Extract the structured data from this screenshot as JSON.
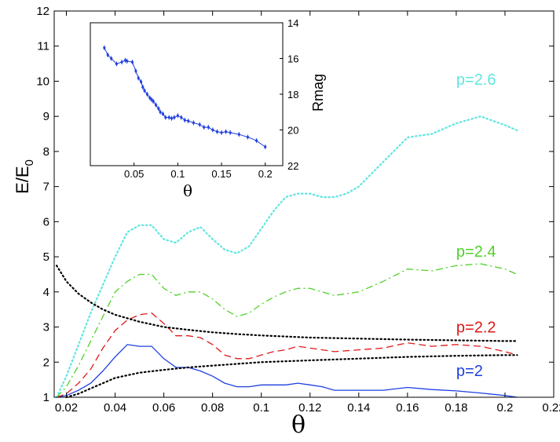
{
  "chart_data": {
    "type": "line",
    "xlabel": "θ",
    "ylabel": "E/E",
    "ylabel_sub": "0",
    "xlim": [
      0.015,
      0.22
    ],
    "ylim": [
      1,
      12
    ],
    "xticks": [
      0.02,
      0.04,
      0.06,
      0.08,
      0.1,
      0.12,
      0.14,
      0.16,
      0.18,
      0.2,
      0.22
    ],
    "xtick_labels": [
      "0.02",
      "0.04",
      "0.06",
      "0.08",
      "0.1",
      "0.12",
      "0.14",
      "0.16",
      "0.18",
      "0.2",
      "0.22"
    ],
    "yticks": [
      1,
      2,
      3,
      4,
      5,
      6,
      7,
      8,
      9,
      10,
      11,
      12
    ],
    "ytick_labels": [
      "1",
      "2",
      "3",
      "4",
      "5",
      "6",
      "7",
      "8",
      "9",
      "10",
      "11",
      "12"
    ],
    "series": [
      {
        "name": "p=2",
        "label": "p=2",
        "color": "#1f3fe0",
        "style": "solid",
        "label_at": [
          0.18,
          1.6
        ],
        "x": [
          0.016,
          0.02,
          0.025,
          0.03,
          0.035,
          0.04,
          0.045,
          0.05,
          0.055,
          0.06,
          0.065,
          0.07,
          0.075,
          0.08,
          0.085,
          0.09,
          0.095,
          0.1,
          0.105,
          0.11,
          0.115,
          0.12,
          0.125,
          0.13,
          0.135,
          0.14,
          0.15,
          0.16,
          0.17,
          0.18,
          0.19,
          0.2,
          0.205
        ],
        "y": [
          1.0,
          1.05,
          1.2,
          1.4,
          1.75,
          2.15,
          2.5,
          2.45,
          2.45,
          2.1,
          1.85,
          1.85,
          1.75,
          1.6,
          1.4,
          1.3,
          1.3,
          1.35,
          1.35,
          1.35,
          1.4,
          1.35,
          1.3,
          1.2,
          1.2,
          1.2,
          1.2,
          1.28,
          1.22,
          1.18,
          1.12,
          1.05,
          1.0
        ]
      },
      {
        "name": "p=2.2",
        "label": "p=2.2",
        "color": "#e01818",
        "style": "dashed",
        "label_at": [
          0.18,
          2.85
        ],
        "x": [
          0.016,
          0.02,
          0.025,
          0.03,
          0.035,
          0.04,
          0.045,
          0.05,
          0.055,
          0.06,
          0.065,
          0.07,
          0.075,
          0.08,
          0.085,
          0.09,
          0.095,
          0.1,
          0.105,
          0.11,
          0.115,
          0.12,
          0.125,
          0.13,
          0.14,
          0.15,
          0.16,
          0.17,
          0.18,
          0.19,
          0.2,
          0.205
        ],
        "y": [
          1.0,
          1.1,
          1.4,
          1.8,
          2.4,
          2.9,
          3.2,
          3.35,
          3.4,
          3.1,
          2.75,
          2.75,
          2.7,
          2.5,
          2.2,
          2.1,
          2.1,
          2.2,
          2.3,
          2.35,
          2.45,
          2.4,
          2.35,
          2.3,
          2.35,
          2.4,
          2.55,
          2.45,
          2.5,
          2.45,
          2.3,
          2.2
        ]
      },
      {
        "name": "p=2.4",
        "label": "p=2.4",
        "color": "#4fd12a",
        "style": "dashdot",
        "label_at": [
          0.18,
          5.0
        ],
        "x": [
          0.016,
          0.02,
          0.025,
          0.03,
          0.035,
          0.04,
          0.045,
          0.05,
          0.055,
          0.06,
          0.065,
          0.07,
          0.075,
          0.08,
          0.085,
          0.09,
          0.095,
          0.1,
          0.105,
          0.11,
          0.115,
          0.12,
          0.125,
          0.13,
          0.14,
          0.15,
          0.16,
          0.17,
          0.18,
          0.19,
          0.2,
          0.205
        ],
        "y": [
          1.0,
          1.3,
          1.9,
          2.6,
          3.3,
          4.0,
          4.3,
          4.5,
          4.5,
          4.1,
          3.9,
          4.0,
          4.0,
          3.8,
          3.5,
          3.3,
          3.4,
          3.65,
          3.85,
          4.0,
          4.1,
          4.1,
          4.0,
          3.9,
          4.0,
          4.3,
          4.65,
          4.6,
          4.75,
          4.8,
          4.65,
          4.5
        ]
      },
      {
        "name": "p=2.6",
        "label": "p=2.6",
        "color": "#5ee6df",
        "style": "dotted",
        "label_at": [
          0.18,
          9.9
        ],
        "x": [
          0.016,
          0.02,
          0.025,
          0.03,
          0.035,
          0.04,
          0.045,
          0.05,
          0.055,
          0.06,
          0.065,
          0.07,
          0.075,
          0.08,
          0.085,
          0.09,
          0.095,
          0.1,
          0.105,
          0.11,
          0.115,
          0.12,
          0.125,
          0.13,
          0.135,
          0.14,
          0.15,
          0.16,
          0.17,
          0.18,
          0.19,
          0.2,
          0.205
        ],
        "y": [
          1.0,
          1.6,
          2.5,
          3.4,
          4.2,
          5.0,
          5.7,
          5.9,
          5.9,
          5.5,
          5.4,
          5.7,
          5.85,
          5.5,
          5.2,
          5.1,
          5.3,
          5.8,
          6.3,
          6.7,
          6.8,
          6.8,
          6.7,
          6.7,
          6.8,
          7.0,
          7.7,
          8.4,
          8.5,
          8.8,
          9.0,
          8.75,
          8.6
        ]
      },
      {
        "name": "upper envelope",
        "label": "",
        "color": "#000000",
        "style": "dotted",
        "x": [
          0.016,
          0.02,
          0.025,
          0.03,
          0.035,
          0.04,
          0.05,
          0.06,
          0.07,
          0.08,
          0.09,
          0.1,
          0.12,
          0.14,
          0.16,
          0.18,
          0.2,
          0.205
        ],
        "y": [
          4.75,
          4.3,
          3.95,
          3.7,
          3.5,
          3.35,
          3.15,
          3.0,
          2.92,
          2.85,
          2.8,
          2.76,
          2.7,
          2.67,
          2.64,
          2.62,
          2.6,
          2.6
        ]
      },
      {
        "name": "lower envelope",
        "label": "",
        "color": "#000000",
        "style": "dotted",
        "x": [
          0.02,
          0.025,
          0.03,
          0.035,
          0.04,
          0.05,
          0.06,
          0.07,
          0.08,
          0.09,
          0.1,
          0.12,
          0.14,
          0.16,
          0.18,
          0.2,
          0.205
        ],
        "y": [
          1.0,
          1.1,
          1.25,
          1.4,
          1.55,
          1.7,
          1.78,
          1.85,
          1.9,
          1.95,
          2.0,
          2.05,
          2.1,
          2.15,
          2.18,
          2.2,
          2.2
        ]
      }
    ],
    "inset": {
      "type": "line",
      "xlabel": "θ",
      "ylabel": "Rmag",
      "ylabel_position": "right",
      "y_reversed": true,
      "xlim": [
        0,
        0.22
      ],
      "ylim": [
        14,
        22
      ],
      "xticks": [
        0.05,
        0.1,
        0.15,
        0.2
      ],
      "xtick_labels": [
        "0.05",
        "0.1",
        "0.15",
        "0.2"
      ],
      "yticks": [
        14,
        16,
        18,
        20,
        22
      ],
      "ytick_labels": [
        "14",
        "16",
        "18",
        "20",
        "22"
      ],
      "color": "#1f3fe0",
      "x": [
        0.016,
        0.02,
        0.024,
        0.03,
        0.036,
        0.04,
        0.042,
        0.048,
        0.052,
        0.055,
        0.058,
        0.06,
        0.062,
        0.065,
        0.068,
        0.07,
        0.072,
        0.075,
        0.078,
        0.08,
        0.083,
        0.086,
        0.09,
        0.093,
        0.096,
        0.1,
        0.104,
        0.108,
        0.112,
        0.118,
        0.125,
        0.13,
        0.135,
        0.14,
        0.145,
        0.15,
        0.155,
        0.16,
        0.17,
        0.18,
        0.19,
        0.2
      ],
      "y": [
        15.4,
        15.8,
        16.0,
        16.3,
        16.2,
        16.1,
        16.15,
        16.2,
        16.7,
        17.1,
        17.3,
        17.6,
        17.8,
        18.0,
        18.2,
        18.3,
        18.4,
        18.6,
        18.8,
        19.0,
        19.1,
        19.3,
        19.3,
        19.35,
        19.3,
        19.2,
        19.3,
        19.45,
        19.5,
        19.6,
        19.7,
        19.85,
        19.85,
        20.0,
        20.1,
        20.15,
        20.1,
        20.15,
        20.25,
        20.4,
        20.6,
        20.95
      ]
    }
  }
}
